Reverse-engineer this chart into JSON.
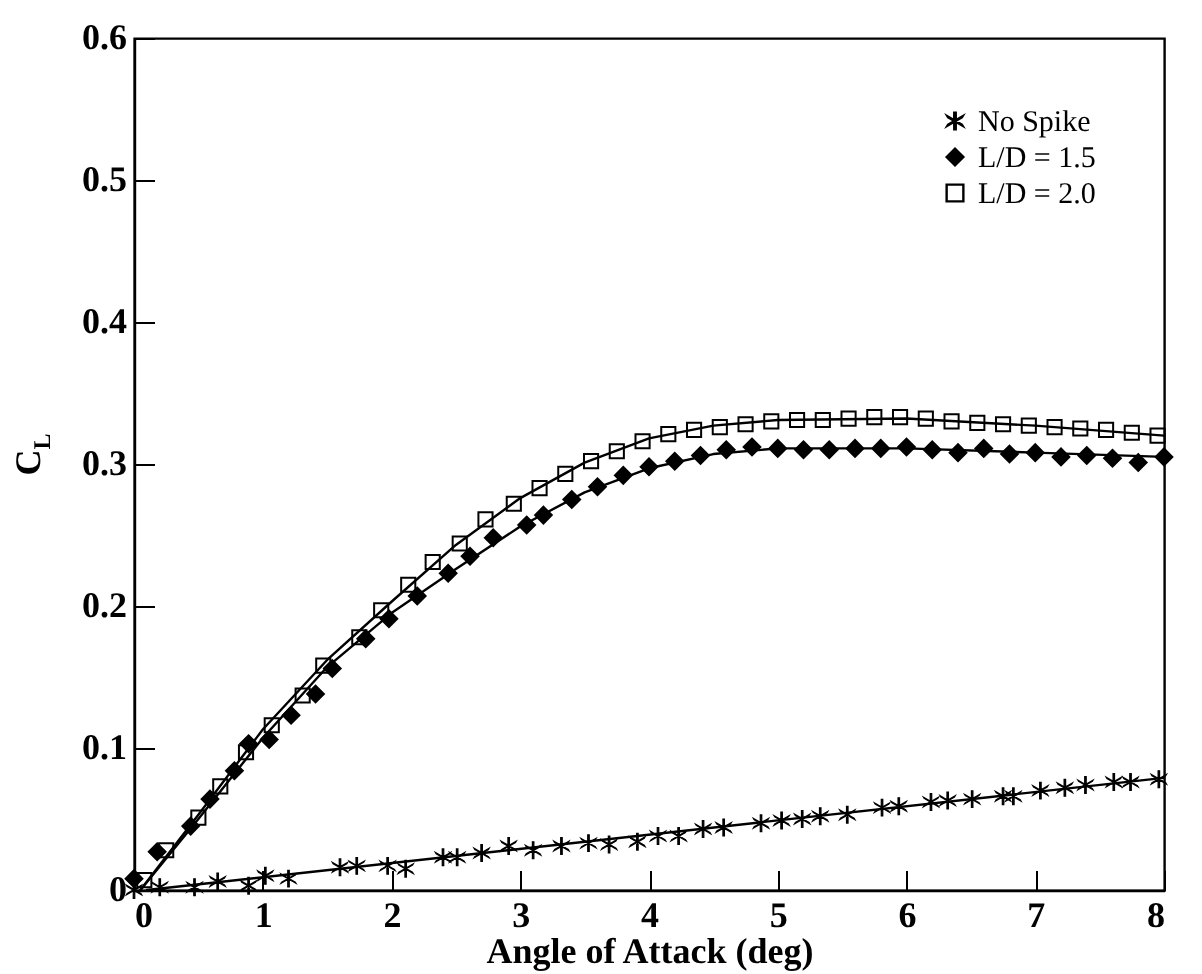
{
  "chart_data": {
    "type": "scatter",
    "xlabel": "Angle of Attack (deg)",
    "ylabel": "C$_{L}$",
    "xlim": [
      0,
      8
    ],
    "ylim": [
      0,
      0.6
    ],
    "xticks": [
      0,
      1,
      2,
      3,
      4,
      5,
      6,
      7,
      8
    ],
    "yticks": [
      0,
      0.1,
      0.2,
      0.3,
      0.4,
      0.5,
      0.6
    ],
    "grid": false,
    "legend": "top right",
    "series": [
      {
        "name": "No Spike",
        "type": "scatter",
        "marker": "cross",
        "color": "#000000",
        "x": [
          0,
          0.2,
          0.47,
          0.65,
          0.89,
          1.02,
          1.2,
          1.6,
          1.73,
          1.97,
          2.11,
          2.4,
          2.51,
          2.7,
          2.91,
          3.1,
          3.32,
          3.53,
          3.69,
          3.91,
          4.07,
          4.23,
          4.42,
          4.58,
          4.87,
          5.03,
          5.19,
          5.33,
          5.54,
          5.81,
          5.94,
          6.19,
          6.32,
          6.51,
          6.75,
          6.83,
          7.04,
          7.23,
          7.39,
          7.61,
          7.74,
          7.96
        ],
        "values": [
          0,
          0.002,
          0.002,
          0.006,
          0.003,
          0.01,
          0.008,
          0.016,
          0.017,
          0.017,
          0.015,
          0.023,
          0.023,
          0.026,
          0.031,
          0.028,
          0.031,
          0.033,
          0.032,
          0.034,
          0.038,
          0.038,
          0.043,
          0.044,
          0.047,
          0.049,
          0.05,
          0.052,
          0.053,
          0.058,
          0.059,
          0.062,
          0.063,
          0.064,
          0.066,
          0.066,
          0.07,
          0.072,
          0.074,
          0.076,
          0.076,
          0.078
        ]
      },
      {
        "name": "L/D = 1.5",
        "type": "scatter",
        "marker": "diamond",
        "color": "#000000",
        "x": [
          0,
          0.18,
          0.44,
          0.59,
          0.78,
          0.89,
          1.05,
          1.22,
          1.41,
          1.54,
          1.8,
          1.98,
          2.2,
          2.44,
          2.61,
          2.79,
          3.05,
          3.18,
          3.4,
          3.6,
          3.8,
          4.0,
          4.2,
          4.4,
          4.6,
          4.8,
          5.0,
          5.2,
          5.4,
          5.6,
          5.8,
          6.0,
          6.2,
          6.4,
          6.6,
          6.8,
          7.0,
          7.2,
          7.4,
          7.6,
          7.8,
          8.0
        ],
        "values": [
          0.008,
          0.027,
          0.045,
          0.064,
          0.084,
          0.103,
          0.106,
          0.123,
          0.138,
          0.156,
          0.177,
          0.191,
          0.207,
          0.223,
          0.235,
          0.248,
          0.257,
          0.264,
          0.275,
          0.284,
          0.292,
          0.298,
          0.302,
          0.306,
          0.31,
          0.312,
          0.311,
          0.31,
          0.31,
          0.311,
          0.311,
          0.312,
          0.31,
          0.308,
          0.311,
          0.307,
          0.308,
          0.305,
          0.306,
          0.304,
          0.301,
          0.305
        ]
      },
      {
        "name": "L/D = 2.0",
        "type": "scatter",
        "marker": "square",
        "color": "#000000",
        "x": [
          0.08,
          0.25,
          0.5,
          0.67,
          0.87,
          1.07,
          1.31,
          1.47,
          1.75,
          1.92,
          2.13,
          2.32,
          2.53,
          2.73,
          2.95,
          3.15,
          3.35,
          3.55,
          3.75,
          3.95,
          4.15,
          4.35,
          4.55,
          4.75,
          4.95,
          5.15,
          5.35,
          5.55,
          5.75,
          5.95,
          6.15,
          6.35,
          6.55,
          6.75,
          6.95,
          7.15,
          7.35,
          7.55,
          7.75,
          7.95
        ],
        "values": [
          0.007,
          0.028,
          0.051,
          0.073,
          0.097,
          0.116,
          0.137,
          0.158,
          0.178,
          0.197,
          0.215,
          0.231,
          0.244,
          0.261,
          0.272,
          0.283,
          0.293,
          0.302,
          0.309,
          0.316,
          0.321,
          0.324,
          0.326,
          0.328,
          0.33,
          0.331,
          0.331,
          0.332,
          0.333,
          0.333,
          0.332,
          0.33,
          0.329,
          0.328,
          0.327,
          0.326,
          0.325,
          0.324,
          0.322,
          0.32
        ]
      },
      {
        "type": "line",
        "marker": "none",
        "color": "#000000",
        "x": [
          0.1,
          8
        ],
        "values": [
          0,
          0.079
        ]
      },
      {
        "type": "line",
        "marker": "none",
        "color": "#000000",
        "x": [
          0.05,
          0.5,
          1,
          1.5,
          2,
          2.5,
          3,
          3.5,
          4,
          4.5,
          5,
          6,
          7,
          8
        ],
        "values": [
          0,
          0.05,
          0.107,
          0.157,
          0.195,
          0.226,
          0.256,
          0.28,
          0.297,
          0.307,
          0.311,
          0.311,
          0.308,
          0.305
        ]
      },
      {
        "type": "line",
        "marker": "none",
        "color": "#000000",
        "x": [
          0.05,
          0.5,
          1,
          1.5,
          2,
          2.5,
          3,
          3.5,
          4,
          4.5,
          5,
          6,
          7,
          8
        ],
        "values": [
          0,
          0.053,
          0.113,
          0.162,
          0.203,
          0.243,
          0.276,
          0.301,
          0.318,
          0.327,
          0.331,
          0.332,
          0.327,
          0.32
        ]
      }
    ]
  }
}
